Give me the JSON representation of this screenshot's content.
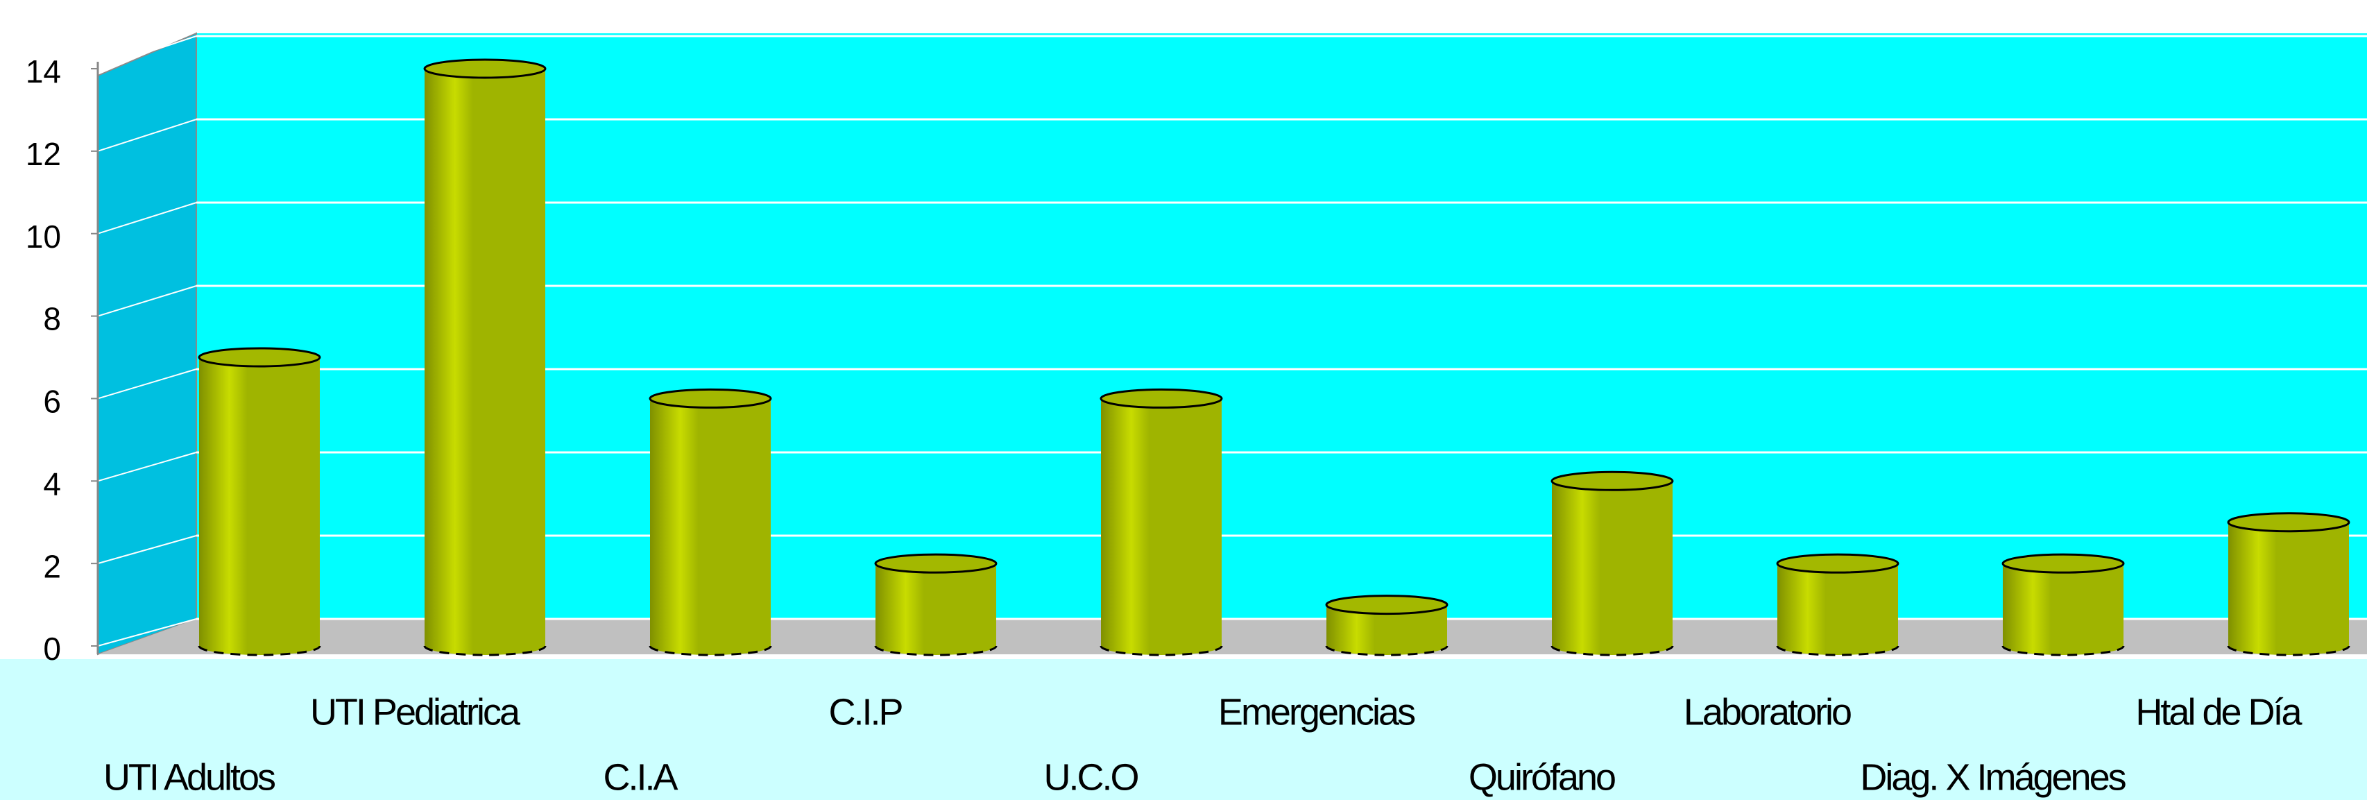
{
  "chart_data": {
    "type": "bar3d",
    "categories": [
      "UTI Adultos",
      "UTI Pediatrica",
      "C.I.A",
      "C.I.P",
      "U.C.O",
      "Emergencias",
      "Quirófano",
      "Laboratorio",
      "Diag. X Imágenes",
      "Htal de Día"
    ],
    "values": [
      7,
      14,
      6,
      2,
      6,
      1,
      4,
      2,
      2,
      3
    ],
    "color": "#a3b800",
    "ylim": [
      0,
      14
    ],
    "yticks": [
      0,
      2,
      4,
      6,
      8,
      10,
      12,
      14
    ],
    "grid": true
  }
}
